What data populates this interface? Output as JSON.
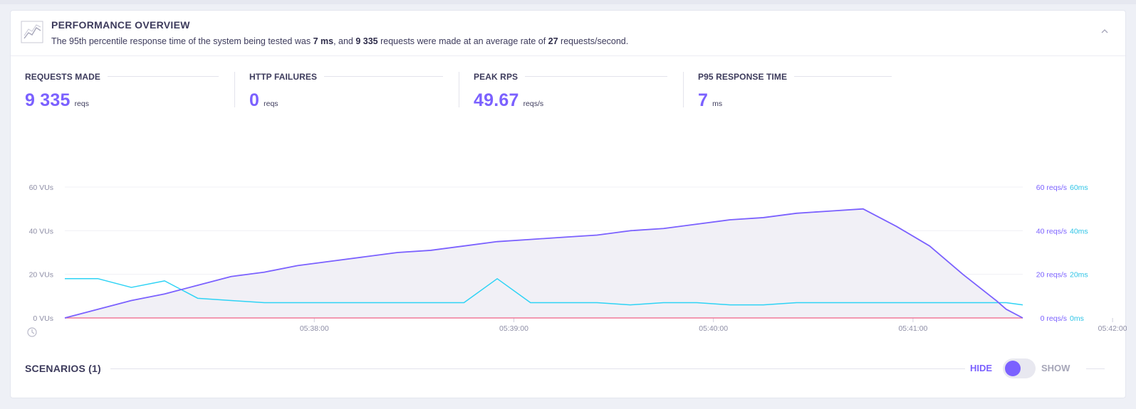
{
  "header": {
    "title": "PERFORMANCE OVERVIEW",
    "summary": {
      "p1": "The 95th percentile response time of the system being tested was ",
      "p95": "7 ms",
      "p2": ", and ",
      "requests": "9 335",
      "p3": " requests were made at an average rate of ",
      "rate": "27",
      "p4": " requests/second."
    }
  },
  "metrics": [
    {
      "label": "REQUESTS MADE",
      "value": "9 335",
      "unit": "reqs"
    },
    {
      "label": "HTTP FAILURES",
      "value": "0",
      "unit": "reqs"
    },
    {
      "label": "PEAK RPS",
      "value": "49.67",
      "unit": "reqs/s"
    },
    {
      "label": "P95 RESPONSE TIME",
      "value": "7",
      "unit": "ms"
    }
  ],
  "colors": {
    "accent": "#7b61ff",
    "vus": "#7b61ff",
    "response": "#2ed3f5",
    "failures": "#f07a9a",
    "fill": "#f1f0f6"
  },
  "chart_data": {
    "type": "line",
    "axes": {
      "left_ticks": [
        "0 VUs",
        "20 VUs",
        "40 VUs",
        "60 VUs"
      ],
      "right_ticks_rps": [
        "0 reqs/s",
        "20 reqs/s",
        "40 reqs/s",
        "60 reqs/s"
      ],
      "right_ticks_ms": [
        "0ms",
        "20ms",
        "40ms",
        "60ms"
      ],
      "x_ticks": [
        "05:38:00",
        "05:39:00",
        "05:40:00",
        "05:41:00",
        "05:42:00"
      ],
      "ylim": [
        0,
        60
      ],
      "xlim_seconds": [
        0,
        288
      ],
      "x_tick_seconds": [
        75,
        135,
        195,
        255,
        315
      ]
    },
    "grid": true,
    "series": [
      {
        "key": "vus",
        "t": [
          0,
          10,
          20,
          30,
          40,
          50,
          60,
          70,
          80,
          90,
          100,
          110,
          120,
          130,
          140,
          150,
          160,
          170,
          180,
          190,
          200,
          210,
          220,
          230,
          240,
          250,
          260,
          270,
          280,
          283,
          288
        ],
        "values": [
          0,
          4,
          8,
          11,
          15,
          19,
          21,
          24,
          26,
          28,
          30,
          31,
          33,
          35,
          36,
          37,
          38,
          40,
          41,
          43,
          45,
          46,
          48,
          49,
          50,
          42,
          33,
          20,
          8,
          4,
          0
        ]
      },
      {
        "key": "p95",
        "t": [
          0,
          10,
          20,
          30,
          40,
          50,
          60,
          70,
          80,
          90,
          100,
          110,
          120,
          130,
          140,
          150,
          160,
          170,
          180,
          190,
          200,
          210,
          220,
          230,
          240,
          250,
          260,
          270,
          280,
          283,
          288
        ],
        "values": [
          18,
          18,
          14,
          17,
          9,
          8,
          7,
          7,
          7,
          7,
          7,
          7,
          7,
          18,
          7,
          7,
          7,
          6,
          7,
          7,
          6,
          6,
          7,
          7,
          7,
          7,
          7,
          7,
          7,
          7,
          6
        ]
      },
      {
        "key": "failures",
        "t": [
          0,
          288
        ],
        "values": [
          0,
          0
        ]
      }
    ]
  },
  "scenarios": {
    "label": "SCENARIOS (1)",
    "hide": "HIDE",
    "show": "SHOW"
  }
}
